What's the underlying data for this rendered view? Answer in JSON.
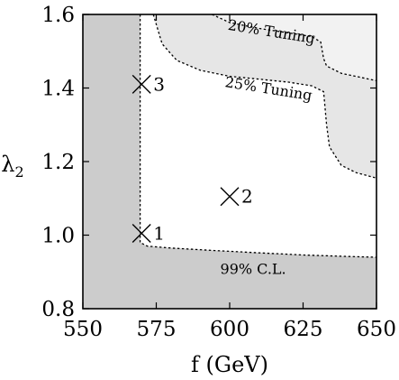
{
  "chart_data": {
    "type": "area",
    "title": "",
    "xlabel": "f (GeV)",
    "ylabel": "λ",
    "ylabel_subscript": "2",
    "xlim": [
      550,
      650
    ],
    "ylim": [
      0.8,
      1.6
    ],
    "xticks": [
      "550",
      "575",
      "600",
      "625",
      "650"
    ],
    "xtick_values": [
      550,
      575,
      600,
      625,
      650
    ],
    "yticks": [
      "0.8",
      "1.0",
      "1.2",
      "1.4",
      "1.6"
    ],
    "ytick_values": [
      0.8,
      1.0,
      1.2,
      1.4,
      1.6
    ],
    "grid": false,
    "colors": {
      "excluded": "#cccccc",
      "tuning_25": "#e6e6e6",
      "tuning_20": "#f2f2f2",
      "allowed": "#ffffff",
      "frame": "#000000"
    },
    "regions": [
      {
        "label": "99% C.L.",
        "color_key": "excluded",
        "boundary": [
          [
            569.5,
            1.6
          ],
          [
            569.5,
            0.98
          ],
          [
            572,
            0.97
          ],
          [
            580,
            0.965
          ],
          [
            595,
            0.958
          ],
          [
            610,
            0.952
          ],
          [
            625,
            0.946
          ],
          [
            640,
            0.942
          ],
          [
            650,
            0.94
          ]
        ]
      },
      {
        "label": "25% Tuning",
        "color_key": "tuning_25",
        "boundary": [
          [
            574,
            1.6
          ],
          [
            577,
            1.52
          ],
          [
            582,
            1.475
          ],
          [
            590,
            1.448
          ],
          [
            600,
            1.432
          ],
          [
            610,
            1.424
          ],
          [
            620,
            1.416
          ],
          [
            628,
            1.406
          ],
          [
            632,
            1.39
          ],
          [
            633,
            1.3
          ],
          [
            634,
            1.24
          ],
          [
            638,
            1.19
          ],
          [
            643,
            1.17
          ],
          [
            650,
            1.155
          ]
        ]
      },
      {
        "label": "20% Tuning",
        "color_key": "tuning_20",
        "boundary": [
          [
            594,
            1.6
          ],
          [
            600,
            1.578
          ],
          [
            610,
            1.562
          ],
          [
            620,
            1.55
          ],
          [
            628,
            1.54
          ],
          [
            631,
            1.525
          ],
          [
            632,
            1.48
          ],
          [
            633,
            1.46
          ],
          [
            638,
            1.44
          ],
          [
            644,
            1.43
          ],
          [
            650,
            1.42
          ]
        ]
      }
    ],
    "annotations": [
      {
        "text": "20% Tuning",
        "x": 614,
        "y": 1.54,
        "angle": 9
      },
      {
        "text": "25% Tuning",
        "x": 613,
        "y": 1.385,
        "angle": 9
      },
      {
        "text": "99% C.L.",
        "x": 608,
        "y": 0.895,
        "angle": 0
      }
    ],
    "points": [
      {
        "label": "1",
        "x": 570,
        "y": 1.005
      },
      {
        "label": "2",
        "x": 600,
        "y": 1.105
      },
      {
        "label": "3",
        "x": 570,
        "y": 1.41
      }
    ]
  }
}
